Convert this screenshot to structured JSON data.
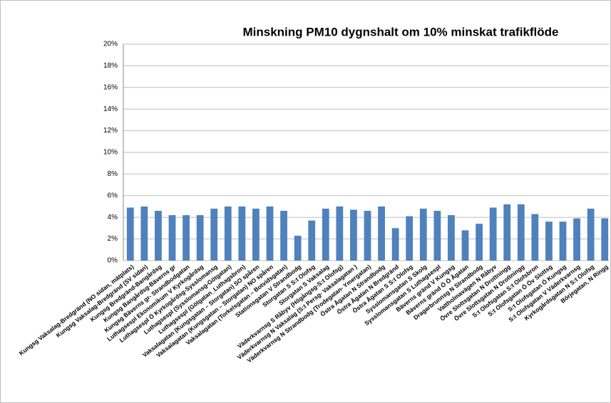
{
  "chart_data": {
    "type": "bar",
    "title": "Minskning PM10 dygnshalt om 10% minskat trafikflöde",
    "categories": [
      "Kungsg Vaksalag-Bredgränd (NO sidan, mätplats)",
      "Kungsg Vaksalag-Bredgränd (SV sidan)",
      "Kungsg Bredgränd-Bangårdsg",
      "Kungsg Bangårdsg-Bäverns gr",
      "Kungsg Bäverns gr- Strandbodgatan",
      "Luthagsespl Ekonomikum V Kyrkogårdsg",
      "Luthagsespl Ö Kyrkogårdsg-Sysslomansg",
      "Luthagsespl (Sysslomansg-Götgatan)",
      "Luthagsespl (Götgatan_Luthagsbron)",
      "Vaksalagatan (Kungsgatan – Storgatan) SO spåren",
      "Vaksalagatan (Kungsgatan – Storgatan) NO spåren",
      "Vaksalagatan (Torkelsgatan – Botvidsgatan)",
      "Stationsgatan V Strandbodg",
      "Storgatan S S:t Olofsg",
      "Storgatan S Vaksalag",
      "Väderkvarnsg S Råbyv (Högångsg-S:t Olofsg)",
      "Väderkvarnsg N Vaksalag (S:t Persg- Vaksalagatan )",
      "Väderkvarnsg N Strandbodg (Trodegatan- Ymergatan)",
      "Östra Ågatan N Strandbodg",
      "Östra Ågatan N Bredgränd",
      "Östra Ågatan S S:t Olofsg",
      "Sysslomansgatan S Skolg",
      "Sysslomansgatan S Luthagsespl",
      "Bäverns gränd V Kungsg",
      "Bäverns gränd Ö Ö Ågatan",
      "Dragarbrunnsg N Strandbodg",
      "Vattholmavägen N Råbyv",
      "Övre Slottsgatan N Drottningg",
      "Övre Slottsgatan N Drottningg",
      "S:t Olofsgatan S:t Olofsbron",
      "S:t Olofsgatan Ö Öv Slottsg",
      "S:t Olofsgatan Ö Kungsg",
      "S:t Olofsgatan V Väderkvarnsg",
      "Kyrkogårdsgatan N S:t Olofsg",
      "Börjegatan, N Ringg"
    ],
    "values": [
      4.9,
      5.0,
      4.6,
      4.2,
      4.2,
      4.2,
      4.8,
      5.0,
      5.0,
      4.8,
      5.0,
      4.6,
      2.3,
      3.7,
      4.8,
      5.0,
      4.7,
      4.6,
      5.0,
      3.0,
      4.1,
      4.8,
      4.6,
      4.2,
      2.8,
      3.4,
      4.9,
      5.2,
      5.2,
      4.3,
      3.6,
      3.6,
      3.9,
      4.8,
      3.9
    ],
    "color": "#4f81bd",
    "ylim": [
      0,
      20
    ],
    "yticks": [
      {
        "value": 0,
        "label": "0%"
      },
      {
        "value": 2,
        "label": "2%"
      },
      {
        "value": 4,
        "label": "4%"
      },
      {
        "value": 6,
        "label": "6%"
      },
      {
        "value": 8,
        "label": "8%"
      },
      {
        "value": 10,
        "label": "10%"
      },
      {
        "value": 12,
        "label": "12%"
      },
      {
        "value": 14,
        "label": "14%"
      },
      {
        "value": 16,
        "label": "16%"
      },
      {
        "value": 18,
        "label": "18%"
      },
      {
        "value": 20,
        "label": "20%"
      }
    ],
    "grid": true
  }
}
